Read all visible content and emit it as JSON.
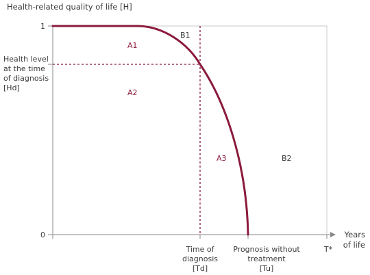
{
  "y_axis": {
    "title": "Health-related quality of life [H]",
    "tick_top": "1",
    "tick_bottom": "0",
    "hd_label_lines": [
      "Health level",
      "at the time",
      "of diagnosis",
      "[Hd]"
    ]
  },
  "x_axis": {
    "title_lines": [
      "Years",
      "of life"
    ],
    "td_label_lines": [
      "Time of",
      "diagnosis",
      "[Td]"
    ],
    "tu_label_lines": [
      "Prognosis without",
      "treatment",
      "[Tu]"
    ],
    "t_star_label": "T*"
  },
  "regions": {
    "a1": "A1",
    "a2": "A2",
    "a3": "A3",
    "b1": "B1",
    "b2": "B2"
  },
  "colors": {
    "curve": "#8b1a3c",
    "region_label_accent": "#8b1a3c",
    "axis": "#8a8a8a",
    "frame": "#c8c8c8",
    "text": "#3a3a3a"
  }
}
